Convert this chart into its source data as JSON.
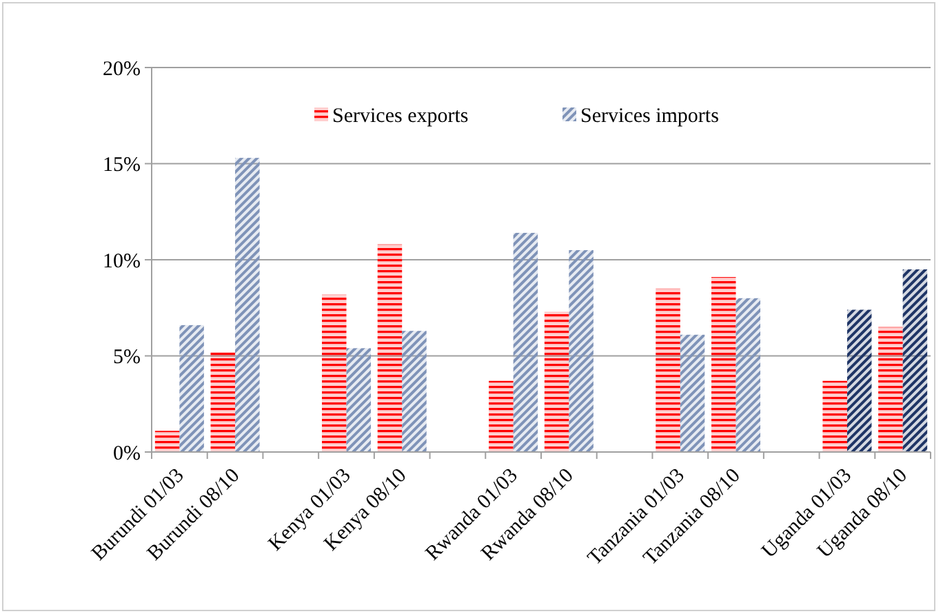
{
  "chart_data": {
    "type": "bar",
    "categories": [
      "Burundi 01/03",
      "Burundi 08/10",
      null,
      "Kenya 01/03",
      "Kenya 08/10",
      null,
      "Rwanda 01/03",
      "Rwanda 08/10",
      null,
      "Tanzania 01/03",
      "Tanzania 08/10",
      null,
      "Uganda 01/03",
      "Uganda 08/10"
    ],
    "series": [
      {
        "name": "Services exports",
        "color": "#ff0000",
        "values": [
          1.1,
          5.2,
          null,
          8.2,
          10.8,
          null,
          3.7,
          7.3,
          null,
          8.5,
          9.1,
          null,
          3.7,
          6.5
        ]
      },
      {
        "name": "Services imports",
        "color": "#7f93b8",
        "colors": [
          "#7f93b8",
          "#7f93b8",
          null,
          "#7f93b8",
          "#7f93b8",
          null,
          "#7f93b8",
          "#7f93b8",
          null,
          "#7f93b8",
          "#7f93b8",
          null,
          "#1f3566",
          "#1f3566"
        ],
        "values": [
          6.6,
          15.3,
          null,
          5.4,
          6.3,
          null,
          11.4,
          10.5,
          null,
          6.1,
          8.0,
          null,
          7.4,
          9.5
        ]
      }
    ],
    "ylim": [
      0,
      20
    ],
    "yticks": [
      {
        "value": 0,
        "label": "0%"
      },
      {
        "value": 5,
        "label": "5%"
      },
      {
        "value": 10,
        "label": "10%"
      },
      {
        "value": 15,
        "label": "15%"
      },
      {
        "value": 20,
        "label": "20%"
      }
    ],
    "grid": "y",
    "legend": "top"
  }
}
